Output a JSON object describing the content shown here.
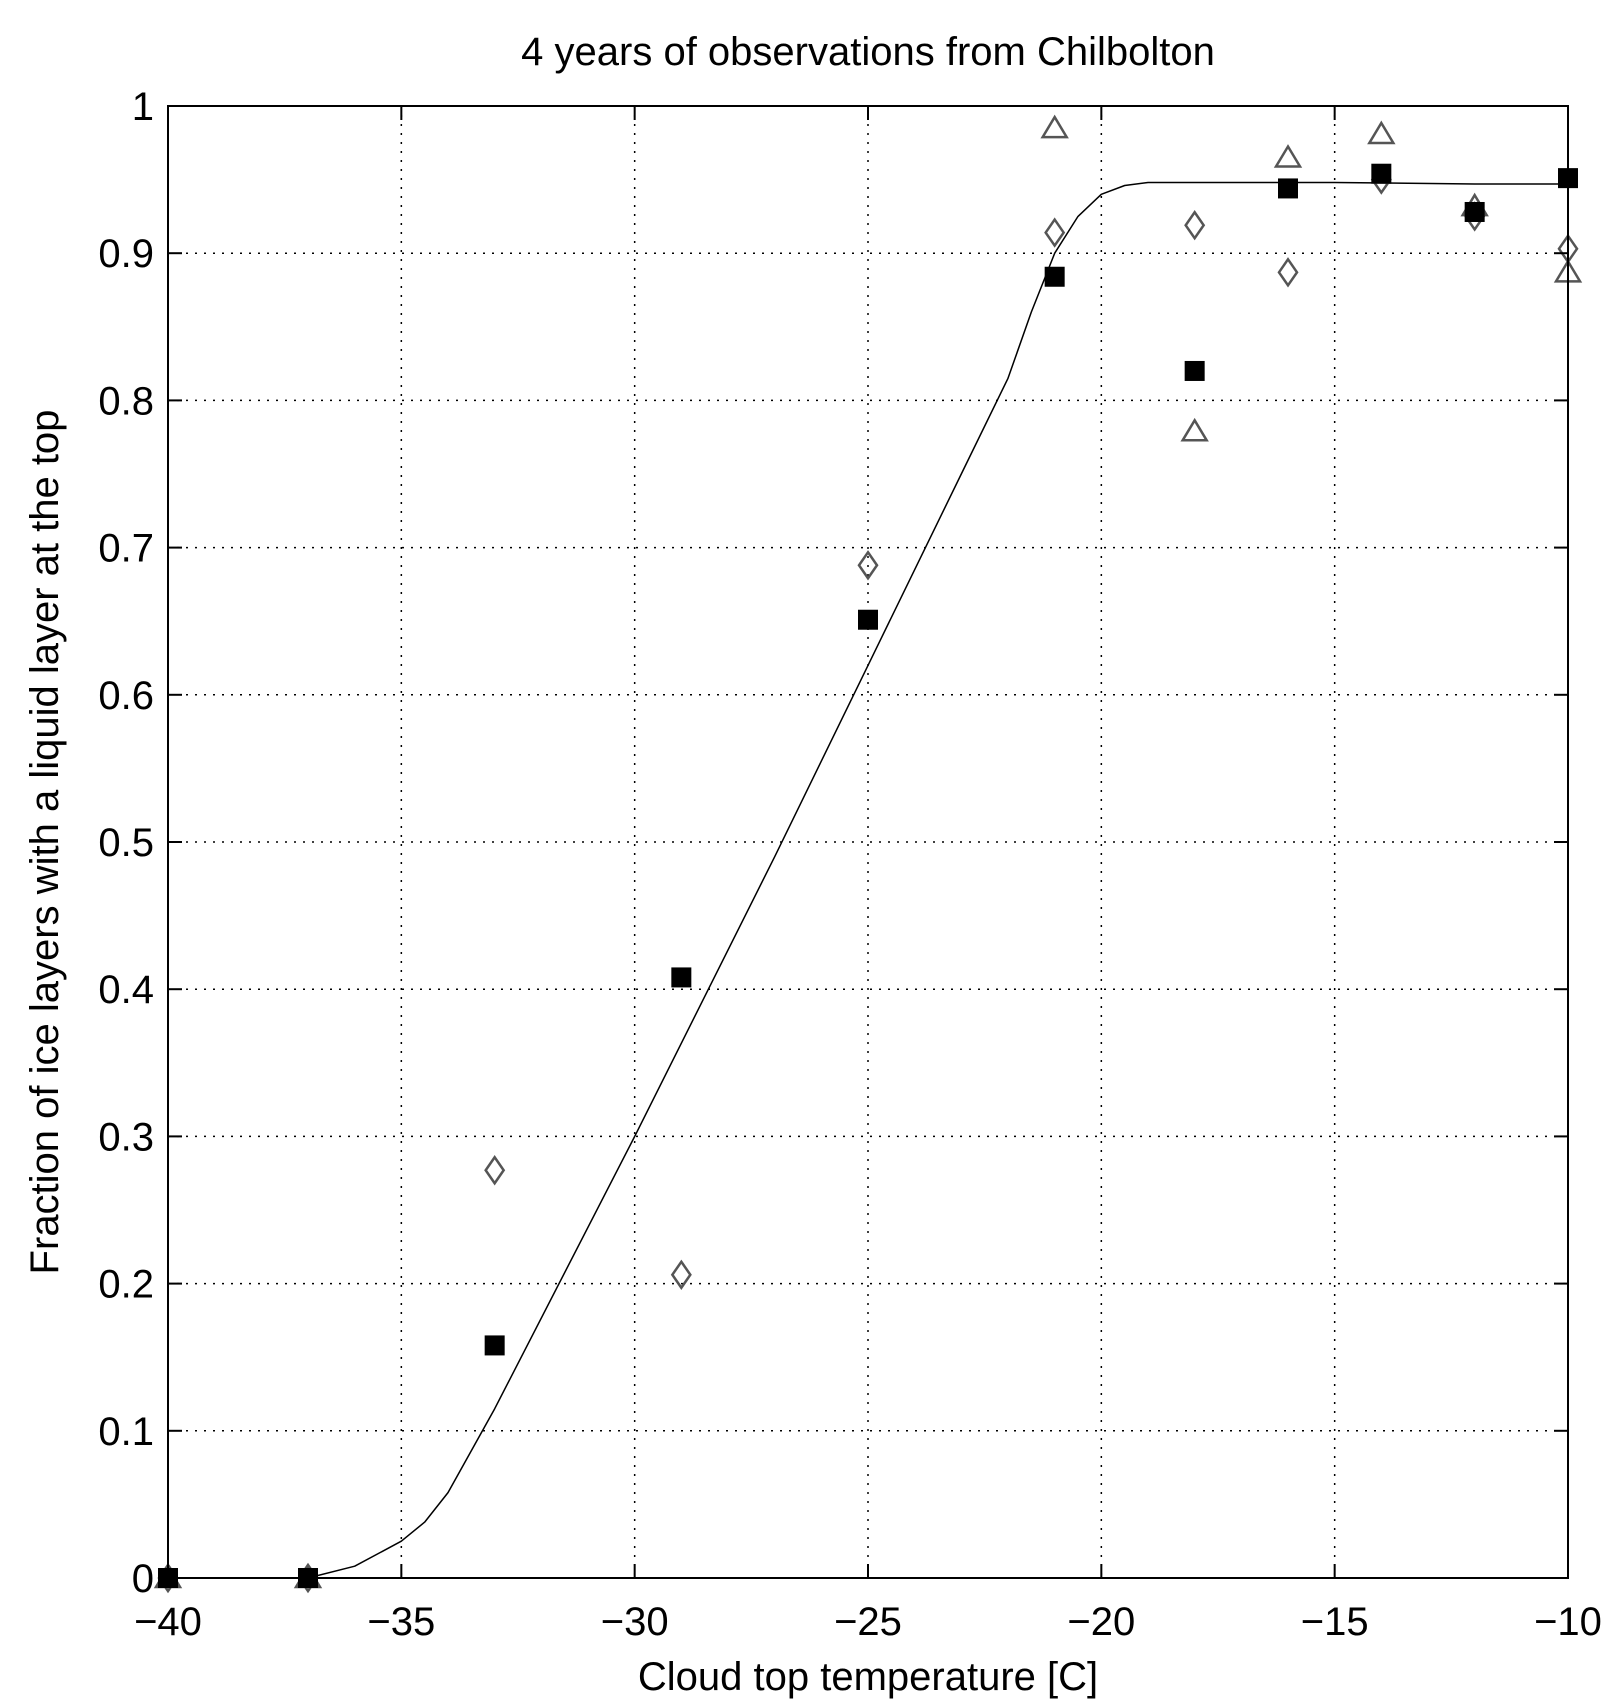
{
  "chart_data": {
    "type": "scatter",
    "title": "4 years of observations from Chilbolton",
    "xlabel": "Cloud top temperature [C]",
    "ylabel": "Fraction of ice layers with a liquid layer at the top",
    "xlim": [
      -40,
      -10
    ],
    "ylim": [
      0,
      1
    ],
    "xticks": [
      -40,
      -35,
      -30,
      -25,
      -20,
      -15,
      -10
    ],
    "xtick_labels": [
      "−40",
      "−35",
      "−30",
      "−25",
      "−20",
      "−15",
      "−10"
    ],
    "yticks": [
      0,
      0.1,
      0.2,
      0.3,
      0.4,
      0.5,
      0.6,
      0.7,
      0.8,
      0.9,
      1
    ],
    "ytick_labels": [
      "0",
      "0.1",
      "0.2",
      "0.3",
      "0.4",
      "0.5",
      "0.6",
      "0.7",
      "0.8",
      "0.9",
      "1"
    ],
    "grid": true,
    "colors": {
      "square": "#000000",
      "open_markers": "#555555",
      "curve": "#000000"
    },
    "series": [
      {
        "marker": "filled-square",
        "x": [
          -40,
          -37,
          -33,
          -29,
          -25,
          -21,
          -18,
          -16,
          -14,
          -12,
          -10
        ],
        "y": [
          0,
          0,
          0.158,
          0.408,
          0.651,
          0.884,
          0.82,
          0.944,
          0.954,
          0.928,
          0.951
        ]
      },
      {
        "marker": "open-diamond",
        "x": [
          -40,
          -37,
          -33,
          -29,
          -25,
          -21,
          -18,
          -16,
          -14,
          -12,
          -10
        ],
        "y": [
          0,
          0,
          0.277,
          0.206,
          0.688,
          0.914,
          0.919,
          0.887,
          0.95,
          0.925,
          0.903
        ]
      },
      {
        "marker": "open-triangle",
        "x": [
          -40,
          -37,
          -21,
          -18,
          -16,
          -14,
          -12,
          -10
        ],
        "y": [
          0,
          0,
          0.985,
          0.779,
          0.965,
          0.981,
          0.932,
          0.887
        ]
      }
    ],
    "fit_curve": {
      "x": [
        -40,
        -37,
        -36,
        -35,
        -34.5,
        -34,
        -33,
        -30,
        -27,
        -25,
        -23,
        -22,
        -21.5,
        -21,
        -20.5,
        -20,
        -19.5,
        -19,
        -18,
        -15,
        -12,
        -10
      ],
      "y": [
        0,
        0,
        0.008,
        0.025,
        0.038,
        0.058,
        0.115,
        0.3,
        0.49,
        0.62,
        0.75,
        0.815,
        0.86,
        0.9,
        0.925,
        0.94,
        0.946,
        0.948,
        0.948,
        0.948,
        0.947,
        0.947
      ]
    }
  }
}
